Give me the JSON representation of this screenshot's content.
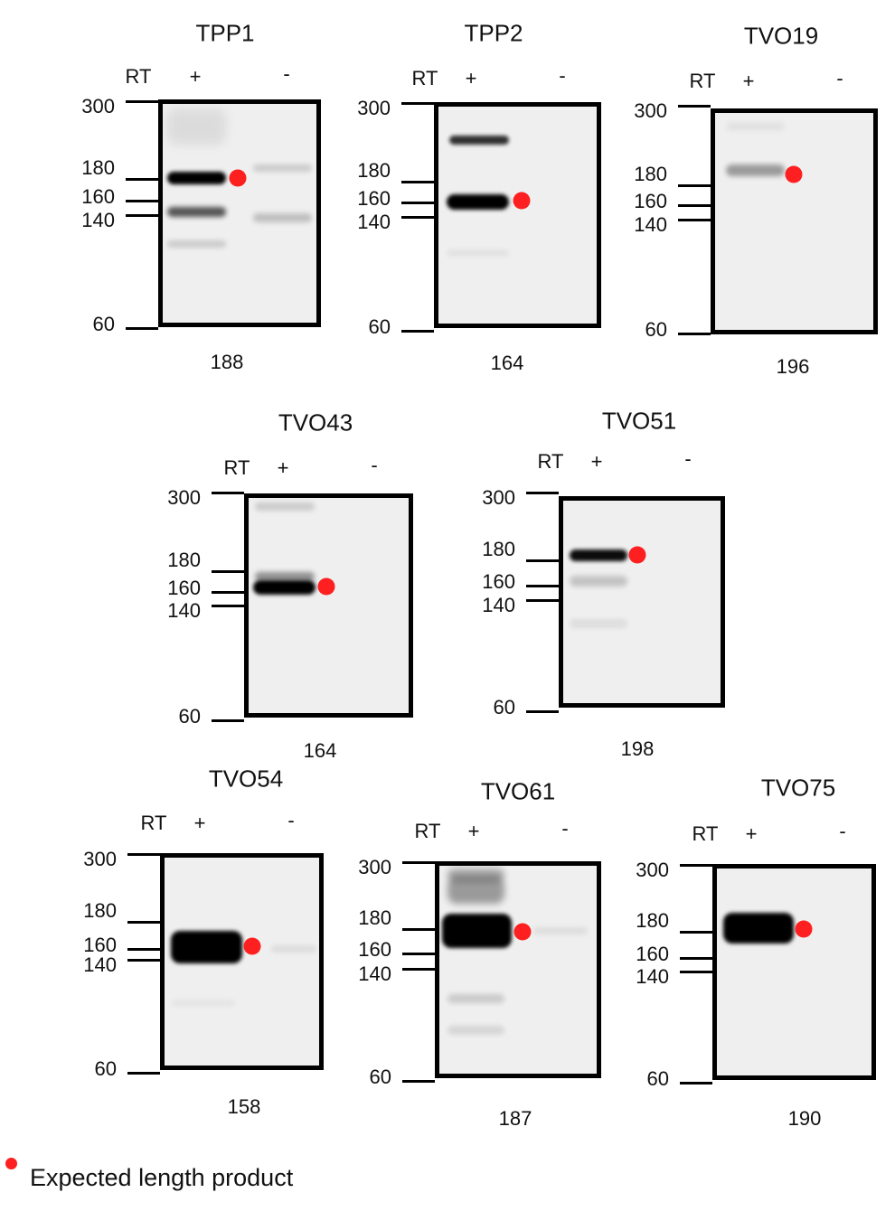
{
  "lane_labels": {
    "rt": "RT",
    "plus": "+",
    "minus": "-"
  },
  "ladder": [
    "300",
    "180",
    "160",
    "140",
    "60"
  ],
  "panels": [
    {
      "title": "TPP1",
      "product_size": "188"
    },
    {
      "title": "TPP2",
      "product_size": "164"
    },
    {
      "title": "TVO19",
      "product_size": "196"
    },
    {
      "title": "TVO43",
      "product_size": "164"
    },
    {
      "title": "TVO51",
      "product_size": "198"
    },
    {
      "title": "TVO54",
      "product_size": "158"
    },
    {
      "title": "TVO61",
      "product_size": "187"
    },
    {
      "title": "TVO75",
      "product_size": "190"
    }
  ],
  "legend": {
    "label": "Expected length product",
    "marker_color": "#fe2020"
  }
}
